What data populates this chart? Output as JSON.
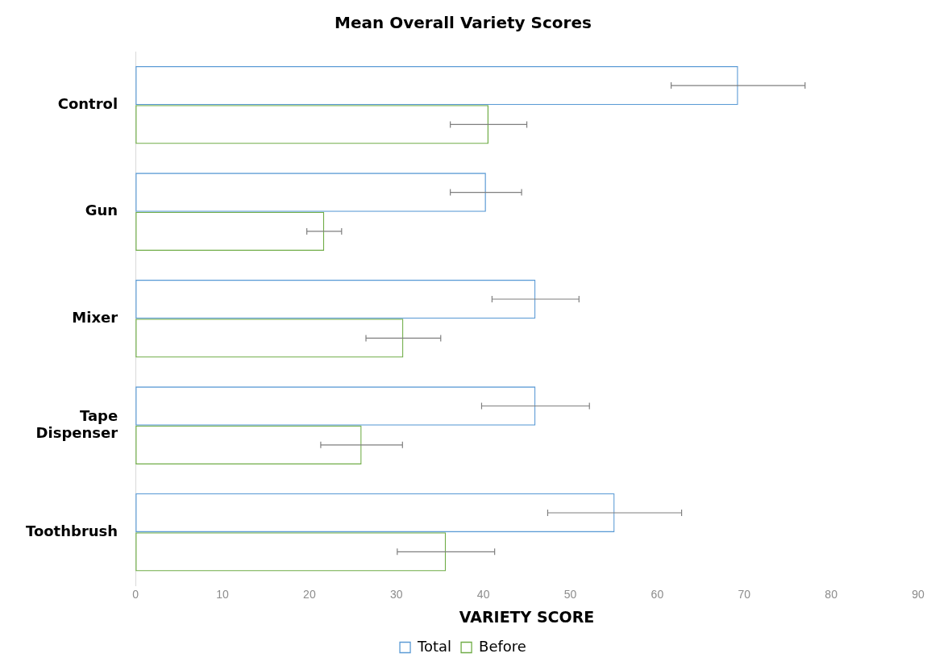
{
  "chart_data": {
    "type": "bar",
    "orientation": "horizontal",
    "title": "Mean Overall Variety Scores",
    "xlabel": "VARIETY SCORE",
    "categories": [
      "Control",
      "Gun",
      "Mixer",
      "Tape Dispenser",
      "Toothbrush"
    ],
    "series": [
      {
        "name": "Total",
        "color": "#5b9bd5",
        "values": [
          69.3,
          40.3,
          46.0,
          46.0,
          55.1
        ],
        "errors": [
          7.7,
          4.1,
          5.0,
          6.2,
          7.7
        ]
      },
      {
        "name": "Before",
        "color": "#70ad47",
        "values": [
          40.6,
          21.7,
          30.8,
          26.0,
          35.7
        ],
        "errors": [
          4.4,
          2.0,
          4.3,
          4.7,
          5.6
        ]
      }
    ],
    "xlim": [
      0,
      90
    ],
    "xticks": [
      0,
      10,
      20,
      30,
      40,
      50,
      60,
      70,
      80,
      90
    ],
    "grid": false,
    "legend": "bottom"
  }
}
